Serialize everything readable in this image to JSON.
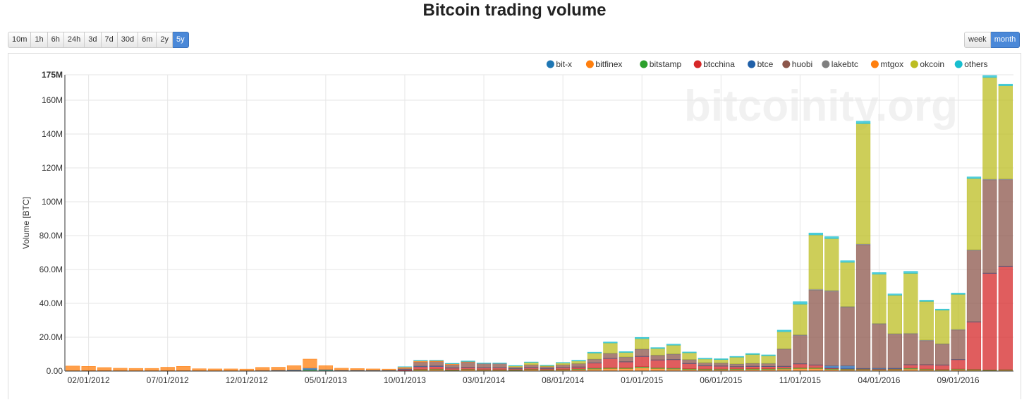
{
  "title": "Bitcoin trading volume",
  "range_buttons": [
    {
      "label": "10m",
      "active": false
    },
    {
      "label": "1h",
      "active": false
    },
    {
      "label": "6h",
      "active": false
    },
    {
      "label": "24h",
      "active": false
    },
    {
      "label": "3d",
      "active": false
    },
    {
      "label": "7d",
      "active": false
    },
    {
      "label": "30d",
      "active": false
    },
    {
      "label": "6m",
      "active": false
    },
    {
      "label": "2y",
      "active": false
    },
    {
      "label": "5y",
      "active": true
    }
  ],
  "period_buttons": [
    {
      "label": "week",
      "active": false
    },
    {
      "label": "month",
      "active": true
    }
  ],
  "watermark": "bitcoinity.org",
  "chart_data": {
    "type": "bar",
    "stacked": true,
    "title": "Bitcoin trading volume",
    "xlabel": "",
    "ylabel": "Volume [BTC]",
    "ylim": [
      0,
      175000000
    ],
    "y_ticks": [
      0,
      20000000,
      40000000,
      60000000,
      80000000,
      100000000,
      120000000,
      140000000,
      160000000,
      175000000
    ],
    "y_tick_labels": [
      "0.00",
      "20.0M",
      "40.0M",
      "60.0M",
      "80.0M",
      "100M",
      "120M",
      "140M",
      "160M",
      "175M"
    ],
    "x_tick_labels": [
      "02/01/2012",
      "07/01/2012",
      "12/01/2012",
      "05/01/2013",
      "10/01/2013",
      "03/01/2014",
      "08/01/2014",
      "01/01/2015",
      "06/01/2015",
      "11/01/2015",
      "04/01/2016",
      "09/01/2016"
    ],
    "x_tick_indices": [
      1,
      6,
      11,
      16,
      21,
      26,
      31,
      36,
      41,
      46,
      51,
      56
    ],
    "categories": [
      "01/2012",
      "02/2012",
      "03/2012",
      "04/2012",
      "05/2012",
      "06/2012",
      "07/2012",
      "08/2012",
      "09/2012",
      "10/2012",
      "11/2012",
      "12/2012",
      "01/2013",
      "02/2013",
      "03/2013",
      "04/2013",
      "05/2013",
      "06/2013",
      "07/2013",
      "08/2013",
      "09/2013",
      "10/2013",
      "11/2013",
      "12/2013",
      "01/2014",
      "02/2014",
      "03/2014",
      "04/2014",
      "05/2014",
      "06/2014",
      "07/2014",
      "08/2014",
      "09/2014",
      "10/2014",
      "11/2014",
      "12/2014",
      "01/2015",
      "02/2015",
      "03/2015",
      "04/2015",
      "05/2015",
      "06/2015",
      "07/2015",
      "08/2015",
      "09/2015",
      "10/2015",
      "11/2015",
      "12/2015",
      "01/2016",
      "02/2016",
      "03/2016",
      "04/2016",
      "05/2016",
      "06/2016",
      "07/2016",
      "08/2016",
      "09/2016",
      "10/2016",
      "11/2016",
      "12/2016"
    ],
    "legend_position": "top-right",
    "series": [
      {
        "name": "bit-x",
        "color": "#1f77b4",
        "values": [
          0,
          0,
          0,
          0,
          0,
          0,
          0,
          0,
          0,
          0,
          0,
          0,
          0,
          0,
          0,
          0,
          0,
          0,
          0,
          0,
          0,
          0,
          0,
          0,
          0,
          0,
          0,
          0,
          0,
          0,
          0,
          0,
          0,
          0,
          0,
          0,
          0,
          0,
          0,
          0,
          0,
          0,
          0,
          0,
          0,
          0,
          0,
          0,
          0,
          0,
          0,
          0,
          0,
          0,
          0,
          0,
          0,
          0,
          0,
          0
        ]
      },
      {
        "name": "bitfinex",
        "color": "#ff7f0e",
        "values": [
          0,
          0,
          0,
          0,
          0,
          0,
          0,
          0,
          0,
          0,
          0,
          0,
          0,
          0,
          0,
          0,
          0,
          0,
          0,
          0,
          0,
          0,
          0.6,
          0.8,
          0.4,
          0.8,
          0.5,
          0.5,
          0.4,
          0.8,
          0.5,
          0.7,
          0.9,
          1.2,
          1.5,
          1.5,
          2.0,
          1.5,
          1.2,
          1.0,
          0.8,
          0.8,
          0.9,
          1.0,
          1.0,
          1.2,
          1.5,
          1.5,
          1.0,
          0.8,
          0.8,
          0.8,
          0.8,
          1.2,
          0.8,
          0.6,
          0.8,
          0.6,
          0.4,
          0.5
        ]
      },
      {
        "name": "bitstamp",
        "color": "#2ca02c",
        "values": [
          0,
          0,
          0,
          0,
          0,
          0,
          0,
          0,
          0,
          0,
          0,
          0,
          0.1,
          0.2,
          0.3,
          0.8,
          0.5,
          0.2,
          0.2,
          0.2,
          0.2,
          0.3,
          0.4,
          0.4,
          0.3,
          0.3,
          0.3,
          0.3,
          0.3,
          0.3,
          0.3,
          0.3,
          0.4,
          0.5,
          0.4,
          0.4,
          0.6,
          0.5,
          0.5,
          0.4,
          0.4,
          0.4,
          0.4,
          0.4,
          0.4,
          0.5,
          0.5,
          0.5,
          0.4,
          0.4,
          0.3,
          0.3,
          0.3,
          0.5,
          0.4,
          0.3,
          0.4,
          0.4,
          0.3,
          0.3
        ]
      },
      {
        "name": "btcchina",
        "color": "#d62728",
        "values": [
          0,
          0,
          0,
          0,
          0,
          0,
          0,
          0,
          0,
          0,
          0,
          0,
          0,
          0,
          0,
          0,
          0,
          0,
          0,
          0,
          0,
          0.5,
          1.5,
          1.5,
          1.0,
          1.0,
          1.0,
          1.0,
          0.6,
          0.8,
          0.7,
          1.0,
          1.0,
          3.0,
          5.5,
          3.5,
          6.0,
          4.5,
          5.0,
          3.0,
          1.8,
          1.7,
          1.2,
          1.3,
          1.2,
          1.0,
          2.2,
          1.5,
          0.3,
          0.2,
          0.2,
          0.1,
          0.3,
          2.0,
          2.5,
          2.6,
          5.5,
          28,
          57,
          61
        ]
      },
      {
        "name": "btce",
        "color": "#2060a8",
        "values": [
          0.2,
          0.3,
          0.3,
          0.2,
          0.2,
          0.2,
          0.3,
          0.3,
          0.2,
          0.2,
          0.2,
          0.2,
          0.3,
          0.3,
          0.4,
          1.0,
          0.4,
          0.3,
          0.3,
          0.3,
          0.3,
          0.3,
          0.4,
          0.4,
          0.3,
          0.2,
          0.2,
          0.2,
          0.2,
          0.2,
          0.2,
          0.2,
          0.2,
          0.2,
          0.2,
          0.2,
          0.2,
          0.2,
          0.2,
          0.2,
          0.2,
          0.2,
          0.2,
          0.2,
          0.2,
          0.2,
          0.2,
          0.2,
          1.5,
          1.8,
          0.3,
          0.5,
          0.3,
          0.2,
          0.2,
          0.2,
          0.2,
          0.2,
          0.2,
          0.2
        ]
      },
      {
        "name": "huobi",
        "color": "#8c564b",
        "values": [
          0,
          0,
          0,
          0,
          0,
          0,
          0,
          0,
          0,
          0,
          0,
          0,
          0,
          0,
          0,
          0,
          0,
          0,
          0,
          0,
          0,
          0.5,
          2.5,
          2.5,
          1.8,
          3.0,
          2.5,
          2.5,
          1.0,
          1.7,
          1.0,
          1.6,
          1.8,
          2.0,
          2.7,
          2.5,
          4.0,
          2.5,
          3.0,
          2.0,
          1.5,
          1.5,
          1.3,
          1.5,
          1.5,
          10.0,
          16.6,
          44.0,
          43.8,
          34.5,
          73,
          26,
          20,
          18,
          14,
          12.1,
          17.3,
          42,
          55,
          51
        ]
      },
      {
        "name": "lakebtc",
        "color": "#7f7f7f",
        "values": [
          0,
          0,
          0,
          0,
          0,
          0,
          0,
          0,
          0,
          0,
          0,
          0,
          0,
          0,
          0,
          0,
          0,
          0,
          0,
          0,
          0,
          0,
          0,
          0,
          0,
          0,
          0,
          0,
          0,
          0,
          0,
          0,
          0.2,
          0.2,
          0.3,
          0.3,
          0.3,
          0.3,
          0.3,
          0.3,
          0.3,
          0.3,
          0.3,
          0.3,
          0.3,
          0.3,
          0.5,
          0.7,
          0.7,
          0.5,
          0.5,
          0.5,
          0.5,
          0.5,
          0.5,
          0.4,
          0.5,
          0.5,
          0.5,
          0.5
        ]
      },
      {
        "name": "mtgox",
        "color": "#ff7f0e",
        "values": [
          2.8,
          2.5,
          1.8,
          1.5,
          1.4,
          1.4,
          2.0,
          2.5,
          1.2,
          1.1,
          1.1,
          1.0,
          1.8,
          1.8,
          2.5,
          5.3,
          2.3,
          1.2,
          1.0,
          0.8,
          0.7,
          0.8,
          0.6,
          0.5,
          0.5,
          0.3,
          0,
          0,
          0,
          0,
          0,
          0,
          0,
          0,
          0,
          0,
          0,
          0,
          0,
          0,
          0,
          0,
          0,
          0,
          0,
          0,
          0,
          0,
          0,
          0,
          0,
          0,
          0,
          0,
          0,
          0,
          0,
          0,
          0,
          0
        ]
      },
      {
        "name": "okcoin",
        "color": "#bcbd22",
        "values": [
          0,
          0,
          0,
          0,
          0,
          0,
          0,
          0,
          0,
          0,
          0,
          0,
          0,
          0,
          0,
          0,
          0,
          0,
          0,
          0,
          0,
          0,
          0,
          0,
          0,
          0,
          0,
          0,
          0.5,
          1.3,
          0.5,
          1.0,
          1.4,
          3.5,
          6.0,
          2.6,
          6.0,
          3.8,
          5.1,
          3.9,
          2.1,
          1.9,
          3.9,
          5.1,
          4.4,
          10.0,
          18.0,
          32.0,
          30.5,
          26.0,
          71.0,
          29.0,
          22.6,
          35.3,
          22.7,
          19.8,
          20.6,
          42.0,
          60.0,
          55.0
        ]
      },
      {
        "name": "others",
        "color": "#17becf",
        "values": [
          0,
          0,
          0,
          0,
          0,
          0,
          0,
          0,
          0,
          0,
          0,
          0,
          0,
          0,
          0,
          0,
          0,
          0,
          0,
          0,
          0,
          0.2,
          0.3,
          0.3,
          0.3,
          0.4,
          0.3,
          0.3,
          0.3,
          0.3,
          0.3,
          0.3,
          0.5,
          0.6,
          0.6,
          0.5,
          0.8,
          0.6,
          0.6,
          0.5,
          0.5,
          0.5,
          0.5,
          0.6,
          0.6,
          1.0,
          1.5,
          1.2,
          1.2,
          1.0,
          1.5,
          1.0,
          0.8,
          1.2,
          0.8,
          0.6,
          0.8,
          1.0,
          1.2,
          1.0
        ]
      }
    ],
    "value_unit_multiplier": 1000000
  }
}
